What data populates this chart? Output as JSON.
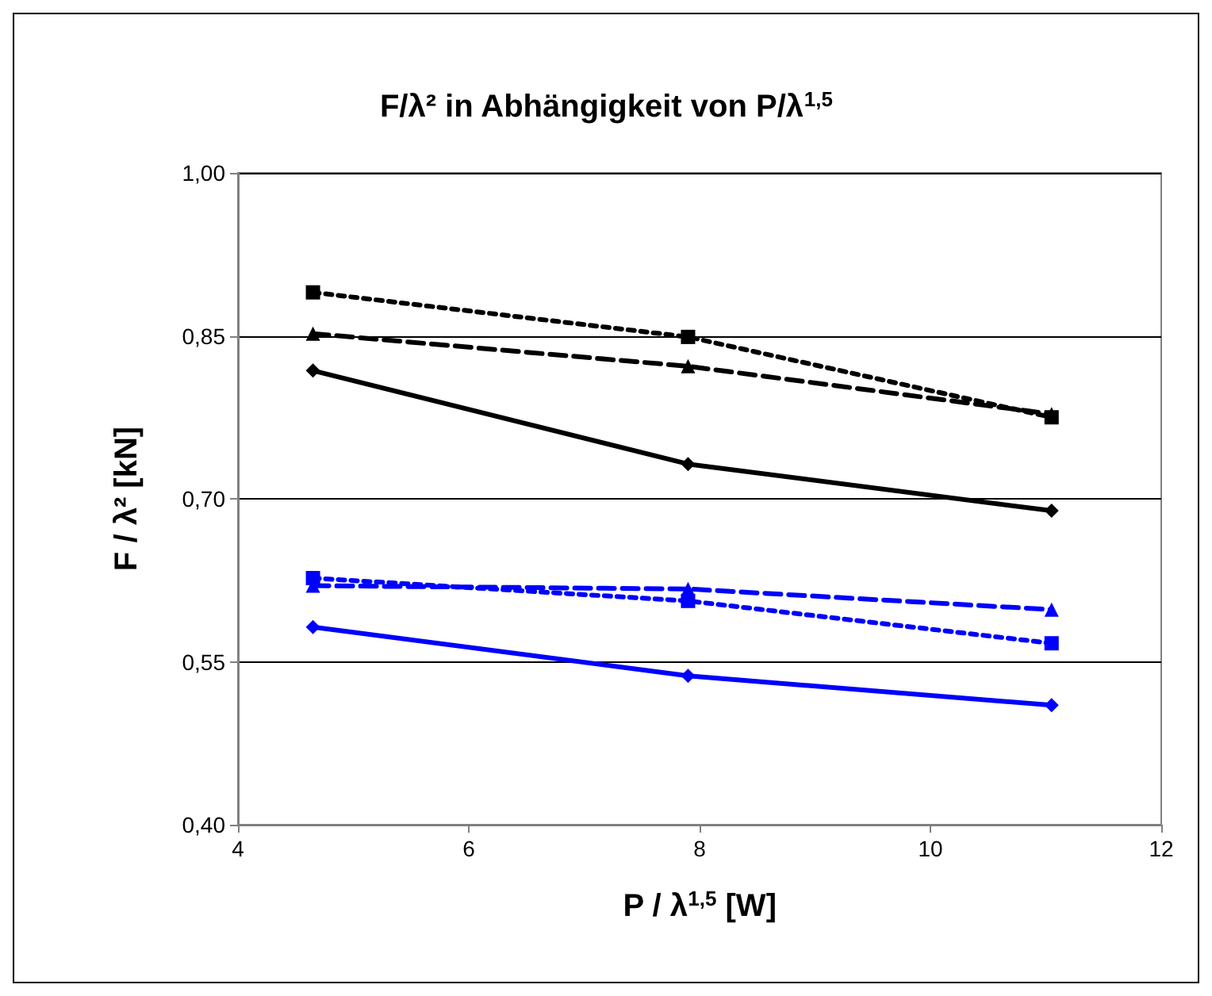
{
  "chart_data": {
    "type": "line",
    "title": "F/λ² in Abhängigkeit von P/λ$^{1,5}$",
    "xlabel": "P / λ$^{1,5}$ [W]",
    "ylabel": "F / λ² [kN]",
    "x": [
      4.65,
      7.9,
      11.05
    ],
    "xlim": [
      4,
      12
    ],
    "xticks": [
      4,
      6,
      8,
      10,
      12
    ],
    "ylim": [
      0.4,
      1.0
    ],
    "yticks": [
      {
        "value": 0.4,
        "label": "0,40"
      },
      {
        "value": 0.55,
        "label": "0,55"
      },
      {
        "value": 0.7,
        "label": "0,70"
      },
      {
        "value": 0.85,
        "label": "0,85"
      },
      {
        "value": 1.0,
        "label": "1,00"
      }
    ],
    "grid": "y",
    "series": [
      {
        "color": "#000000",
        "values": [
          0.89,
          0.849,
          0.775
        ],
        "marker": "square",
        "line_style": "dotted"
      },
      {
        "color": "#000000",
        "values": [
          0.852,
          0.822,
          0.778
        ],
        "marker": "triangle",
        "line_style": "dashed"
      },
      {
        "color": "#000000",
        "values": [
          0.818,
          0.732,
          0.689
        ],
        "marker": "diamond",
        "line_style": "solid"
      },
      {
        "color": "#0000ff",
        "values": [
          0.627,
          0.606,
          0.567
        ],
        "marker": "square",
        "line_style": "dotted"
      },
      {
        "color": "#0000ff",
        "values": [
          0.62,
          0.617,
          0.598
        ],
        "marker": "triangle",
        "line_style": "dashed"
      },
      {
        "color": "#0000ff",
        "values": [
          0.582,
          0.537,
          0.51
        ],
        "marker": "diamond",
        "line_style": "solid"
      }
    ]
  }
}
